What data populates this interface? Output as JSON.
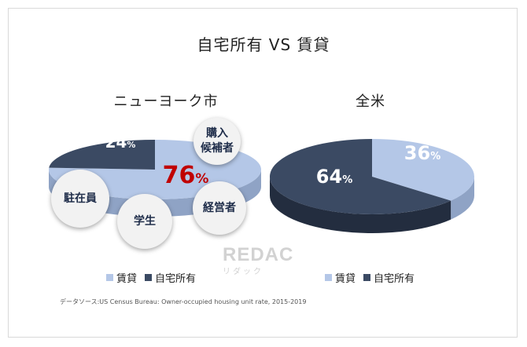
{
  "title": "自宅所有 VS 賃貸",
  "colors": {
    "rent": "#b4c7e7",
    "rent_dark": "#8fa3c5",
    "own": "#3b4a63",
    "own_dark": "#232d3f",
    "highlight": "#c00000"
  },
  "chart_data": [
    {
      "type": "pie",
      "title": "ニューヨーク市",
      "categories": [
        "賃貸",
        "自宅所有"
      ],
      "values": [
        76,
        24
      ],
      "labels": [
        {
          "number": "76",
          "unit": "%"
        },
        {
          "number": "24",
          "unit": "%"
        }
      ],
      "legend": [
        "賃貸",
        "自宅所有"
      ],
      "legend_position": "bottom",
      "annotations": [
        "購入\n候補者",
        "駐在員",
        "学生",
        "経営者"
      ]
    },
    {
      "type": "pie",
      "title": "全米",
      "categories": [
        "賃貸",
        "自宅所有"
      ],
      "values": [
        36,
        64
      ],
      "labels": [
        {
          "number": "36",
          "unit": "%"
        },
        {
          "number": "64",
          "unit": "%"
        }
      ],
      "legend": [
        "賃貸",
        "自宅所有"
      ],
      "legend_position": "bottom"
    }
  ],
  "source": "データソース:US Census Bureau: Owner-occupied housing unit rate, 2015-2019",
  "watermark": {
    "main": "REDAC",
    "sub": "リダック"
  }
}
